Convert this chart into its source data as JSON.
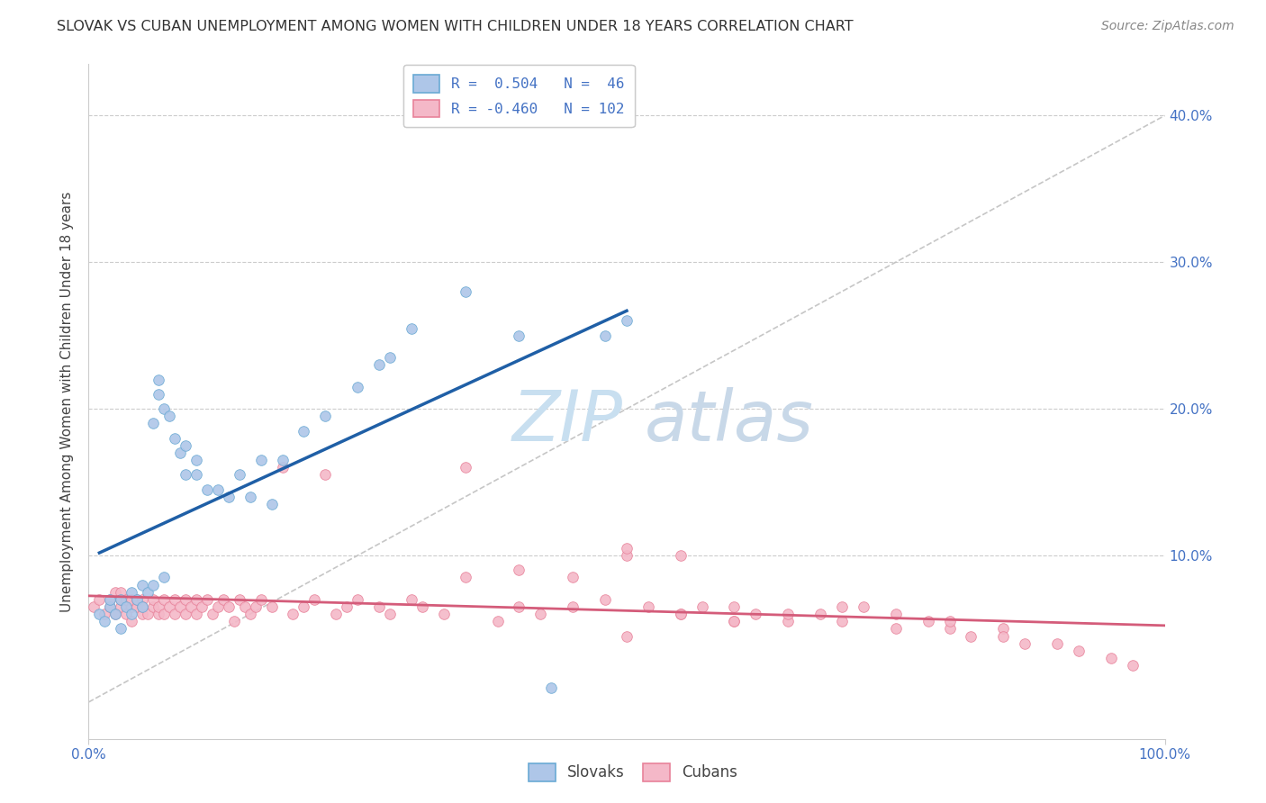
{
  "title": "SLOVAK VS CUBAN UNEMPLOYMENT AMONG WOMEN WITH CHILDREN UNDER 18 YEARS CORRELATION CHART",
  "source": "Source: ZipAtlas.com",
  "ylabel": "Unemployment Among Women with Children Under 18 years",
  "y_ticks": [
    0.0,
    0.1,
    0.2,
    0.3,
    0.4
  ],
  "y_tick_labels": [
    "",
    "10.0%",
    "20.0%",
    "30.0%",
    "40.0%"
  ],
  "x_lim": [
    0.0,
    1.0
  ],
  "y_lim": [
    -0.025,
    0.435
  ],
  "blue_R": 0.504,
  "blue_N": 46,
  "pink_R": -0.46,
  "pink_N": 102,
  "blue_scatter_x": [
    0.01,
    0.015,
    0.02,
    0.02,
    0.025,
    0.03,
    0.03,
    0.035,
    0.04,
    0.04,
    0.045,
    0.05,
    0.05,
    0.055,
    0.06,
    0.06,
    0.065,
    0.065,
    0.07,
    0.07,
    0.075,
    0.08,
    0.085,
    0.09,
    0.09,
    0.1,
    0.1,
    0.11,
    0.12,
    0.13,
    0.14,
    0.15,
    0.16,
    0.17,
    0.18,
    0.2,
    0.22,
    0.25,
    0.27,
    0.28,
    0.3,
    0.35,
    0.4,
    0.43,
    0.48,
    0.5
  ],
  "blue_scatter_y": [
    0.06,
    0.055,
    0.065,
    0.07,
    0.06,
    0.07,
    0.05,
    0.065,
    0.075,
    0.06,
    0.07,
    0.08,
    0.065,
    0.075,
    0.08,
    0.19,
    0.21,
    0.22,
    0.085,
    0.2,
    0.195,
    0.18,
    0.17,
    0.175,
    0.155,
    0.155,
    0.165,
    0.145,
    0.145,
    0.14,
    0.155,
    0.14,
    0.165,
    0.135,
    0.165,
    0.185,
    0.195,
    0.215,
    0.23,
    0.235,
    0.255,
    0.28,
    0.25,
    0.01,
    0.25,
    0.26
  ],
  "pink_scatter_x": [
    0.005,
    0.01,
    0.015,
    0.02,
    0.02,
    0.025,
    0.025,
    0.03,
    0.03,
    0.03,
    0.035,
    0.035,
    0.04,
    0.04,
    0.04,
    0.045,
    0.045,
    0.05,
    0.05,
    0.05,
    0.055,
    0.06,
    0.06,
    0.065,
    0.065,
    0.07,
    0.07,
    0.075,
    0.08,
    0.08,
    0.085,
    0.09,
    0.09,
    0.095,
    0.1,
    0.1,
    0.105,
    0.11,
    0.115,
    0.12,
    0.125,
    0.13,
    0.135,
    0.14,
    0.145,
    0.15,
    0.155,
    0.16,
    0.17,
    0.18,
    0.19,
    0.2,
    0.21,
    0.22,
    0.23,
    0.24,
    0.25,
    0.27,
    0.28,
    0.3,
    0.31,
    0.33,
    0.35,
    0.38,
    0.4,
    0.42,
    0.45,
    0.48,
    0.5,
    0.52,
    0.55,
    0.57,
    0.6,
    0.62,
    0.65,
    0.68,
    0.7,
    0.72,
    0.75,
    0.78,
    0.8,
    0.82,
    0.85,
    0.87,
    0.9,
    0.92,
    0.95,
    0.97,
    0.5,
    0.55,
    0.6,
    0.65,
    0.7,
    0.75,
    0.8,
    0.85,
    0.35,
    0.4,
    0.45,
    0.5,
    0.55,
    0.6
  ],
  "pink_scatter_y": [
    0.065,
    0.07,
    0.06,
    0.065,
    0.07,
    0.06,
    0.075,
    0.065,
    0.07,
    0.075,
    0.06,
    0.07,
    0.065,
    0.07,
    0.055,
    0.065,
    0.07,
    0.06,
    0.07,
    0.065,
    0.06,
    0.065,
    0.07,
    0.06,
    0.065,
    0.07,
    0.06,
    0.065,
    0.07,
    0.06,
    0.065,
    0.07,
    0.06,
    0.065,
    0.07,
    0.06,
    0.065,
    0.07,
    0.06,
    0.065,
    0.07,
    0.065,
    0.055,
    0.07,
    0.065,
    0.06,
    0.065,
    0.07,
    0.065,
    0.16,
    0.06,
    0.065,
    0.07,
    0.155,
    0.06,
    0.065,
    0.07,
    0.065,
    0.06,
    0.07,
    0.065,
    0.06,
    0.16,
    0.055,
    0.065,
    0.06,
    0.065,
    0.07,
    0.1,
    0.065,
    0.06,
    0.065,
    0.055,
    0.06,
    0.055,
    0.06,
    0.055,
    0.065,
    0.05,
    0.055,
    0.05,
    0.045,
    0.05,
    0.04,
    0.04,
    0.035,
    0.03,
    0.025,
    0.105,
    0.1,
    0.065,
    0.06,
    0.065,
    0.06,
    0.055,
    0.045,
    0.085,
    0.09,
    0.085,
    0.045,
    0.06,
    0.055
  ],
  "diag_line_color": "#c0c0c0",
  "blue_line_color": "#1f5fa6",
  "pink_line_color": "#d45c7a",
  "dot_size": 70,
  "blue_dot_color": "#aec6e8",
  "blue_dot_edge": "#6aaad4",
  "pink_dot_color": "#f4b8c8",
  "pink_dot_edge": "#e8829a",
  "background_color": "#ffffff",
  "grid_color": "#cccccc",
  "title_color": "#333333",
  "axis_label_color": "#444444",
  "tick_label_color": "#4472c4",
  "watermark_zip_color": "#c8dff0",
  "watermark_atlas_color": "#c8d8e8"
}
